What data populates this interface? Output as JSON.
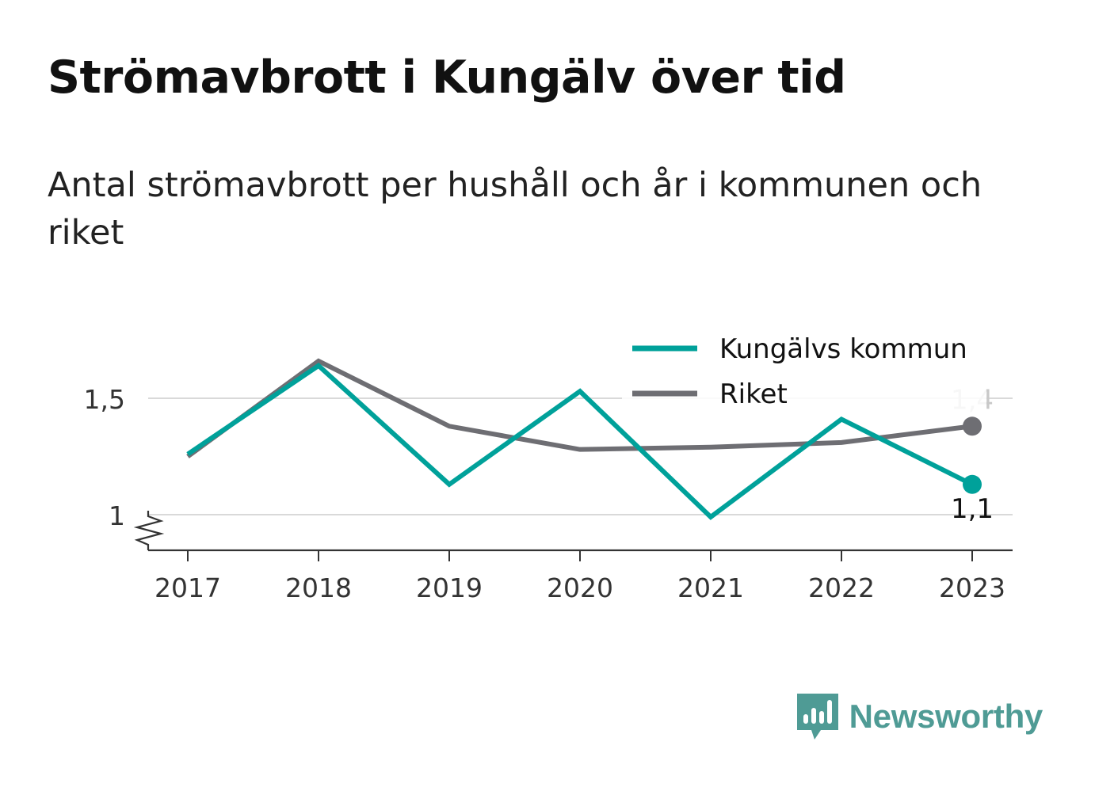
{
  "title": "Strömavbrott i Kungälv över tid",
  "subtitle": "Antal strömavbrott per hushåll och år i kommunen och riket",
  "brand": {
    "name": "Newsworthy",
    "logo_icon": "bar-chart-speech-bubble-icon",
    "color": "#4f9b95"
  },
  "chart_data": {
    "type": "line",
    "categories": [
      "2017",
      "2018",
      "2019",
      "2020",
      "2021",
      "2022",
      "2023"
    ],
    "x": [
      2017,
      2018,
      2019,
      2020,
      2021,
      2022,
      2023
    ],
    "series": [
      {
        "name": "Kungälvs kommun",
        "color": "#00a19a",
        "values": [
          1.26,
          1.64,
          1.13,
          1.53,
          0.99,
          1.41,
          1.13
        ]
      },
      {
        "name": "Riket",
        "color": "#6e6e73",
        "values": [
          1.25,
          1.66,
          1.38,
          1.28,
          1.29,
          1.31,
          1.38
        ]
      }
    ],
    "end_labels": [
      "1,1",
      "1,4"
    ],
    "yticks": [
      1,
      1.5
    ],
    "ytick_labels": [
      "1",
      "1,5"
    ],
    "ylim": [
      0.85,
      1.8
    ],
    "axis_break": true,
    "grid": true,
    "legend_position": "top-right",
    "xlabel": "",
    "ylabel": ""
  }
}
